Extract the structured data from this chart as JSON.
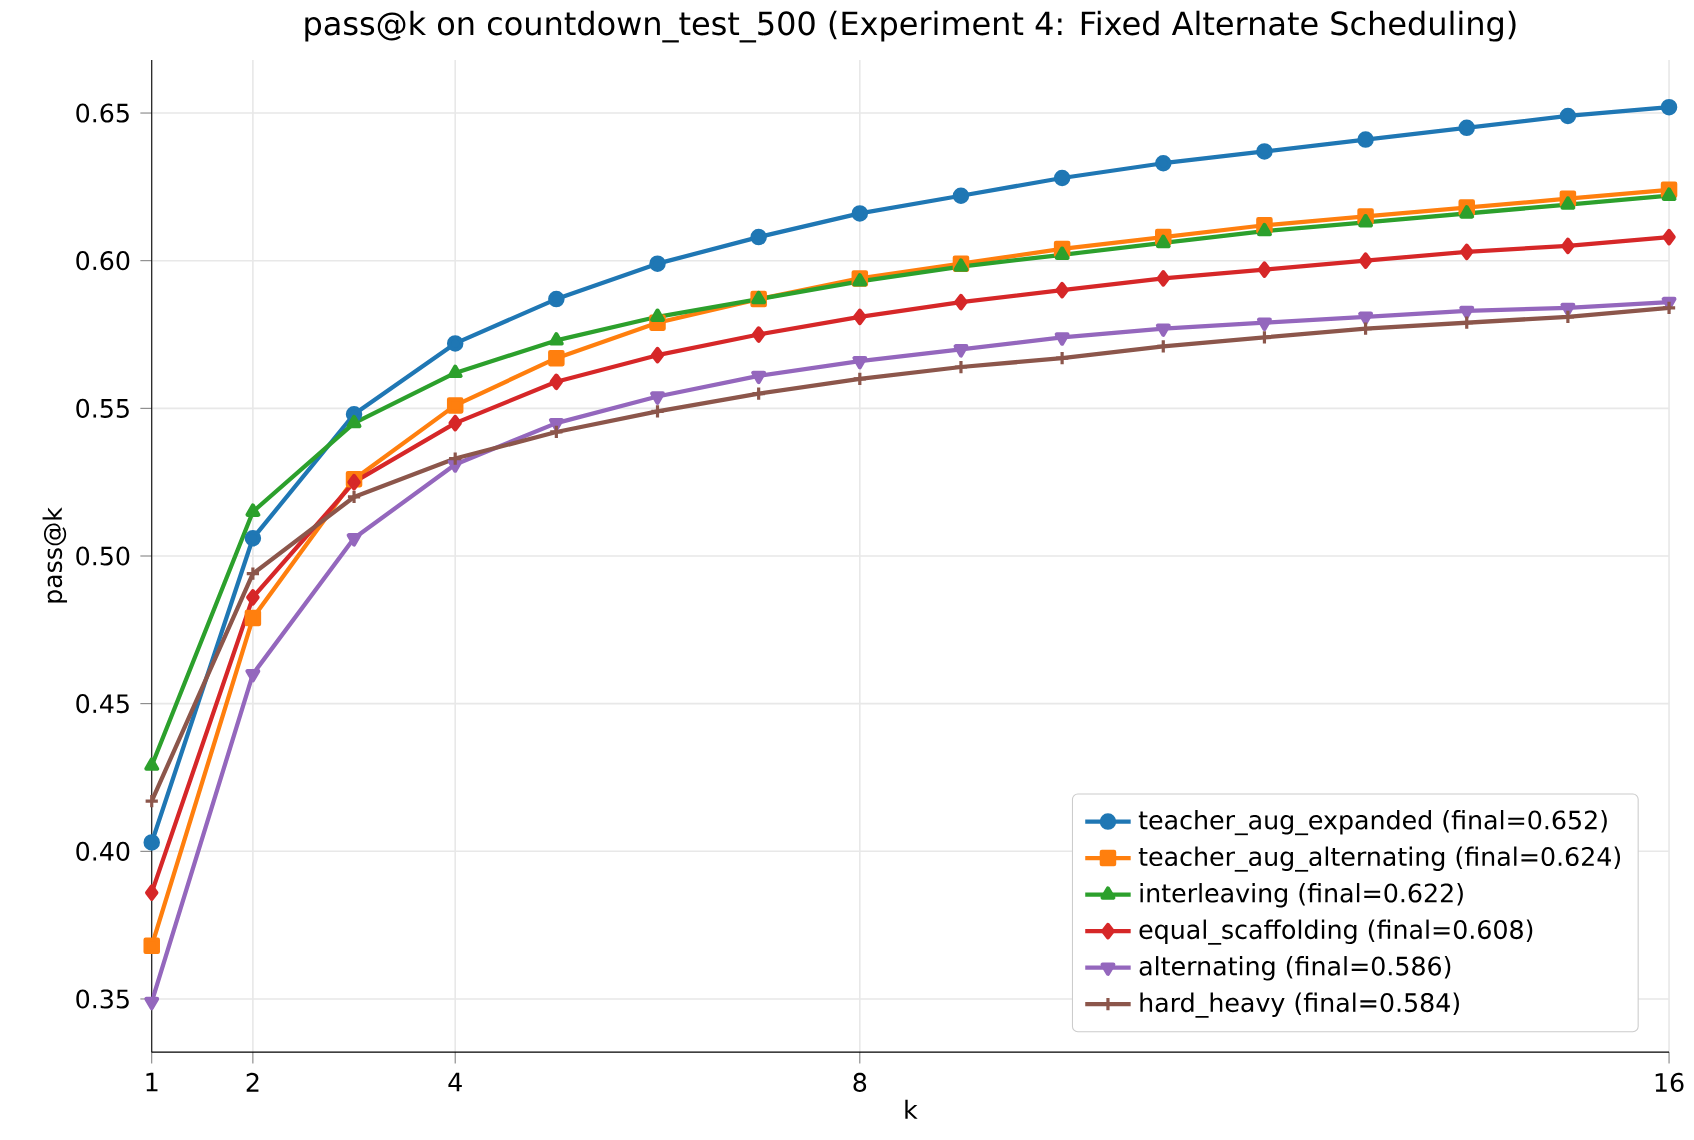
{
  "chart_data": {
    "type": "line",
    "title": "pass@k on countdown_test_500 (Experiment 4: Fixed Alternate Scheduling)",
    "xlabel": "k",
    "ylabel": "pass@k",
    "x": [
      1,
      2,
      3,
      4,
      5,
      6,
      7,
      8,
      9,
      10,
      11,
      12,
      13,
      14,
      15,
      16
    ],
    "xlim": [
      1,
      16
    ],
    "xticks": [
      1,
      2,
      4,
      8,
      16
    ],
    "ylim": [
      0.332,
      0.668
    ],
    "yticks": [
      0.35,
      {
        "value": 0.4,
        "label": "0.40"
      },
      0.45,
      {
        "value": 0.5,
        "label": "0.50"
      },
      0.55,
      {
        "value": 0.6,
        "label": "0.60"
      },
      0.65
    ],
    "grid": true,
    "legend": "bottom right",
    "line_style": "solid",
    "series": [
      {
        "name": "teacher_aug_expanded (final=0.652)",
        "color": "#1f77b4",
        "marker": "circle",
        "values": [
          0.403,
          0.506,
          0.548,
          0.572,
          0.587,
          0.599,
          0.608,
          0.616,
          0.622,
          0.628,
          0.633,
          0.637,
          0.641,
          0.645,
          0.649,
          0.652
        ]
      },
      {
        "name": "teacher_aug_alternating (final=0.624)",
        "color": "#ff7f0e",
        "marker": "square",
        "values": [
          0.368,
          0.479,
          0.526,
          0.551,
          0.567,
          0.579,
          0.587,
          0.594,
          0.599,
          0.604,
          0.608,
          0.612,
          0.615,
          0.618,
          0.621,
          0.624
        ]
      },
      {
        "name": "interleaving (final=0.622)",
        "color": "#2ca02c",
        "marker": "triangle",
        "values": [
          0.429,
          0.515,
          0.545,
          0.562,
          0.573,
          0.581,
          0.587,
          0.593,
          0.598,
          0.602,
          0.606,
          0.61,
          0.613,
          0.616,
          0.619,
          0.622
        ]
      },
      {
        "name": "equal_scaffolding (final=0.608)",
        "color": "#d62728",
        "marker": "diamond",
        "values": [
          0.386,
          0.486,
          0.525,
          0.545,
          0.559,
          0.568,
          0.575,
          0.581,
          0.586,
          0.59,
          0.594,
          0.597,
          0.6,
          0.603,
          0.605,
          0.608
        ]
      },
      {
        "name": "alternating (final=0.586)",
        "color": "#9467bd",
        "marker": "triangle_down",
        "values": [
          0.349,
          0.46,
          0.506,
          0.531,
          0.545,
          0.554,
          0.561,
          0.566,
          0.57,
          0.574,
          0.577,
          0.579,
          0.581,
          0.583,
          0.584,
          0.586
        ]
      },
      {
        "name": "hard_heavy (final=0.584)",
        "color": "#8c564b",
        "marker": "cross",
        "values": [
          0.417,
          0.494,
          0.52,
          0.533,
          0.542,
          0.549,
          0.555,
          0.56,
          0.564,
          0.567,
          0.571,
          0.574,
          0.577,
          0.579,
          0.581,
          0.584
        ]
      }
    ]
  }
}
